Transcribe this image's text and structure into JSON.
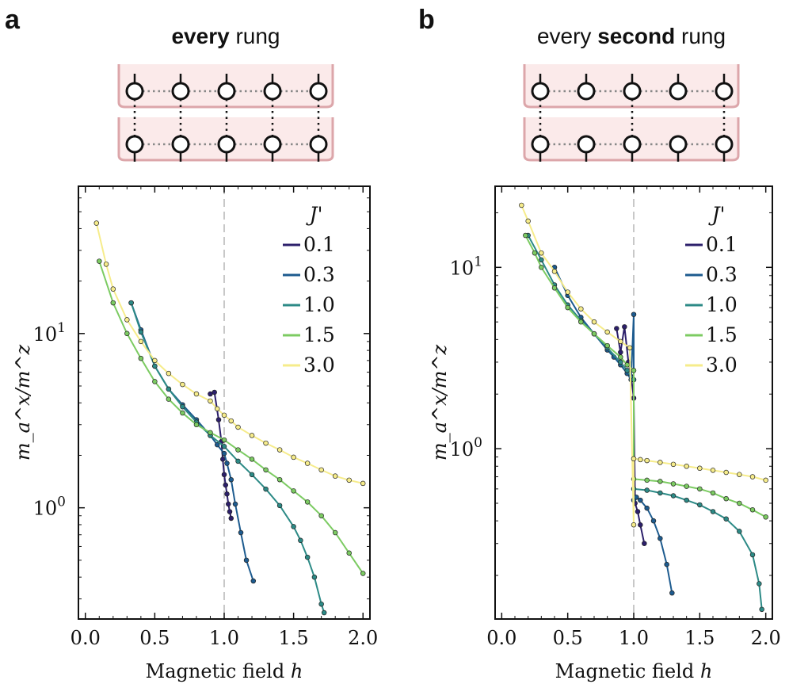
{
  "panels": [
    {
      "letter": "a",
      "title_bold": "every",
      "title_rest": " rung",
      "ladder_couplings": [
        1,
        1,
        1,
        1,
        1
      ]
    },
    {
      "letter": "b",
      "title_pre": "every ",
      "title_bold": "second",
      "title_rest": " rung",
      "ladder_couplings": [
        1,
        0,
        1,
        0,
        1
      ]
    }
  ],
  "colors": {
    "ladder_bg": "#fbeaea",
    "ladder_edge": "#dca6aa",
    "series": [
      "#2c1f6b",
      "#1d5b8f",
      "#2c8a86",
      "#7ccb62",
      "#f6ec8b"
    ]
  },
  "chart_data": [
    {
      "type": "line",
      "panel": "a",
      "xlabel": "Magnetic field h",
      "ylabel": "m_a^x / m^z",
      "yscale": "log",
      "xlim": [
        -0.05,
        2.05
      ],
      "ylim": [
        0.23,
        70
      ],
      "xticks": [
        "0.0",
        "0.5",
        "1.0",
        "1.5",
        "2.0"
      ],
      "yticks": [
        "10^0",
        "10^1"
      ],
      "vline_x": 1.0,
      "legend_title": "J'",
      "legend_position": "top-right",
      "series": [
        {
          "name": "0.1",
          "x": [
            0.9,
            0.93,
            0.96,
            0.98,
            0.99,
            1.0,
            1.01,
            1.02,
            1.03,
            1.04,
            1.05
          ],
          "y": [
            4.5,
            4.6,
            3.2,
            2.4,
            1.9,
            1.55,
            1.35,
            1.2,
            1.05,
            0.95,
            0.87
          ]
        },
        {
          "name": "0.3",
          "x": [
            0.33,
            0.4,
            0.5,
            0.6,
            0.7,
            0.8,
            0.9,
            0.95,
            1.0,
            1.02,
            1.05,
            1.08,
            1.12,
            1.16,
            1.21
          ],
          "y": [
            15,
            10.5,
            6.5,
            4.8,
            3.9,
            3.2,
            2.6,
            2.3,
            2.05,
            1.8,
            1.45,
            1.05,
            0.72,
            0.5,
            0.38
          ]
        },
        {
          "name": "1.0",
          "x": [
            0.33,
            0.4,
            0.5,
            0.6,
            0.7,
            0.8,
            0.9,
            1.0,
            1.1,
            1.2,
            1.3,
            1.4,
            1.5,
            1.55,
            1.6,
            1.65,
            1.7,
            1.72
          ],
          "y": [
            15,
            10.2,
            6.5,
            4.8,
            3.8,
            3.1,
            2.6,
            2.25,
            1.85,
            1.55,
            1.28,
            1.03,
            0.78,
            0.65,
            0.52,
            0.4,
            0.28,
            0.25
          ]
        },
        {
          "name": "1.5",
          "x": [
            0.1,
            0.2,
            0.3,
            0.4,
            0.5,
            0.6,
            0.7,
            0.8,
            0.9,
            1.0,
            1.1,
            1.2,
            1.3,
            1.4,
            1.5,
            1.6,
            1.7,
            1.8,
            1.9,
            2.0
          ],
          "y": [
            26,
            15,
            10,
            7.2,
            5.3,
            4.2,
            3.5,
            3.0,
            2.7,
            2.45,
            2.15,
            1.9,
            1.65,
            1.45,
            1.25,
            1.08,
            0.9,
            0.72,
            0.55,
            0.42
          ]
        },
        {
          "name": "3.0",
          "x": [
            0.08,
            0.15,
            0.2,
            0.3,
            0.4,
            0.5,
            0.6,
            0.7,
            0.8,
            0.9,
            0.95,
            1.0,
            1.05,
            1.1,
            1.2,
            1.3,
            1.4,
            1.5,
            1.6,
            1.7,
            1.8,
            1.9,
            2.0
          ],
          "y": [
            43,
            25,
            18,
            12,
            9,
            7,
            5.9,
            5.1,
            4.5,
            4.1,
            3.7,
            3.4,
            3.15,
            2.9,
            2.6,
            2.35,
            2.15,
            1.95,
            1.8,
            1.65,
            1.52,
            1.44,
            1.38
          ]
        }
      ]
    },
    {
      "type": "line",
      "panel": "b",
      "xlabel": "Magnetic field h",
      "ylabel": "m_a^x / m^z",
      "yscale": "log",
      "xlim": [
        -0.05,
        2.05
      ],
      "ylim": [
        0.115,
        28
      ],
      "xticks": [
        "0.0",
        "0.5",
        "1.0",
        "1.5",
        "2.0"
      ],
      "yticks": [
        "10^0",
        "10^1"
      ],
      "vline_x": 1.0,
      "legend_title": "J'",
      "legend_position": "top-right",
      "series": [
        {
          "name": "0.1",
          "x": [
            0.87,
            0.9,
            0.93,
            0.96,
            0.98,
            1.0,
            1.01,
            1.03,
            1.05,
            1.08
          ],
          "y": [
            4.6,
            3.4,
            4.7,
            3.0,
            2.5,
            1.9,
            0.5,
            0.45,
            0.38,
            0.3
          ]
        },
        {
          "name": "0.3",
          "x": [
            0.4,
            0.5,
            0.6,
            0.7,
            0.8,
            0.85,
            0.9,
            0.95,
            0.98,
            1.0,
            1.0,
            1.02,
            1.05,
            1.1,
            1.15,
            1.2,
            1.25,
            1.29
          ],
          "y": [
            10,
            7,
            5.3,
            4.3,
            3.5,
            3.2,
            2.9,
            2.6,
            2.4,
            5.5,
            0.52,
            0.54,
            0.52,
            0.47,
            0.4,
            0.32,
            0.23,
            0.16
          ]
        },
        {
          "name": "1.0",
          "x": [
            0.2,
            0.3,
            0.4,
            0.5,
            0.6,
            0.7,
            0.8,
            0.9,
            0.95,
            1.0,
            1.0,
            1.1,
            1.2,
            1.3,
            1.4,
            1.5,
            1.6,
            1.7,
            1.8,
            1.9,
            1.95,
            1.97
          ],
          "y": [
            15,
            11,
            8,
            6.2,
            5.1,
            4.3,
            3.6,
            3.0,
            2.7,
            2.4,
            0.6,
            0.59,
            0.57,
            0.55,
            0.52,
            0.49,
            0.45,
            0.41,
            0.35,
            0.26,
            0.18,
            0.13
          ]
        },
        {
          "name": "1.5",
          "x": [
            0.18,
            0.25,
            0.3,
            0.4,
            0.5,
            0.6,
            0.7,
            0.8,
            0.9,
            0.95,
            1.0,
            1.0,
            1.1,
            1.2,
            1.3,
            1.4,
            1.5,
            1.6,
            1.7,
            1.8,
            1.9,
            2.0
          ],
          "y": [
            15,
            12,
            10,
            7.7,
            6,
            5,
            4.3,
            3.7,
            3.2,
            2.9,
            2.7,
            0.68,
            0.67,
            0.66,
            0.64,
            0.62,
            0.6,
            0.57,
            0.53,
            0.5,
            0.46,
            0.42
          ]
        },
        {
          "name": "3.0",
          "x": [
            0.15,
            0.2,
            0.3,
            0.4,
            0.5,
            0.6,
            0.7,
            0.8,
            0.9,
            0.97,
            1.0,
            1.0,
            1.05,
            1.1,
            1.2,
            1.3,
            1.4,
            1.5,
            1.6,
            1.7,
            1.8,
            1.9,
            2.0
          ],
          "y": [
            22,
            18,
            12,
            9.5,
            7.3,
            5.9,
            5.0,
            4.4,
            3.9,
            3.6,
            0.38,
            0.88,
            0.87,
            0.86,
            0.84,
            0.82,
            0.8,
            0.78,
            0.76,
            0.74,
            0.72,
            0.7,
            0.67
          ]
        }
      ]
    }
  ],
  "legend_title": "J'",
  "y_axis_label": "m_a^x/m^z",
  "x_axis_label_text": "Magnetic field",
  "x_axis_label_var": "h",
  "ytick_base": "10",
  "ytick_exp": [
    "0",
    "1"
  ]
}
